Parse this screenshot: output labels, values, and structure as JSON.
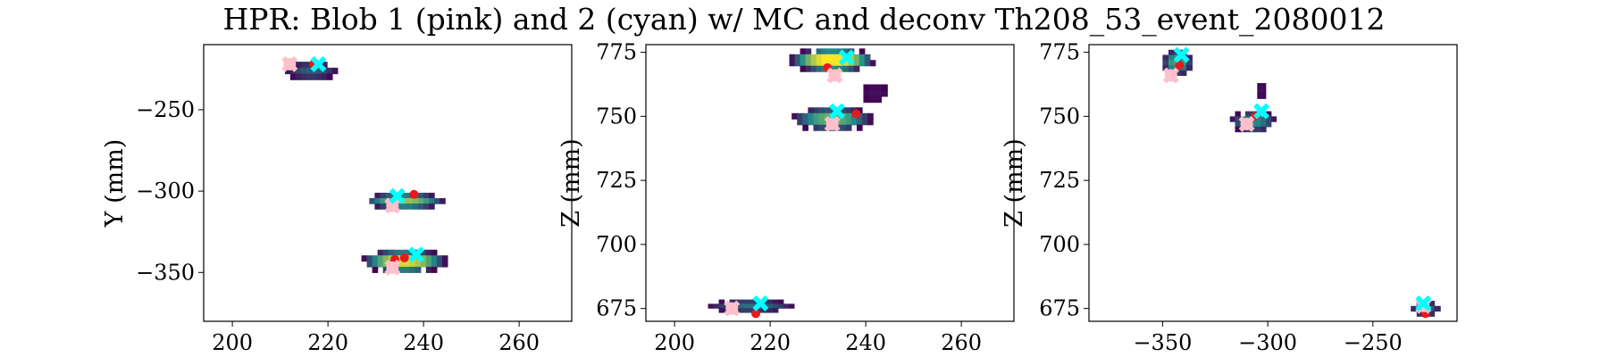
{
  "chart_data": {
    "type": "heatmap",
    "title": "HPR: Blob 1 (pink) and 2 (cyan) w/ MC and deconv Th208_53_event_2080012",
    "colors": {
      "blob1": "#ffc0cb",
      "blob2": "#00ffff",
      "mc_points": "#e41a1c",
      "heatmap_low": "#440154",
      "heatmap_mid": "#21918c",
      "heatmap_high": "#fde725",
      "frame": "#000000"
    },
    "panels": [
      {
        "name": "XY projection",
        "xlabel": "",
        "ylabel": "Y (mm)",
        "xlim": [
          194,
          271
        ],
        "ylim": [
          -380,
          -210
        ],
        "xticks": [
          "200",
          "220",
          "240",
          "260"
        ],
        "yticks": [
          "-250",
          "-300",
          "-350"
        ],
        "heatmap_clusters": [
          {
            "x": 216.5,
            "y": -226,
            "w": 11,
            "h": 11,
            "intensity": 0.25
          },
          {
            "x": 236,
            "y": -306,
            "w": 17,
            "h": 10,
            "intensity": 0.6
          },
          {
            "x": 236,
            "y": -343,
            "w": 18,
            "h": 14,
            "intensity": 0.75
          }
        ],
        "blob1_markers": [
          {
            "x": 212,
            "y": -222
          },
          {
            "x": 233.5,
            "y": -309
          },
          {
            "x": 233.5,
            "y": -347
          }
        ],
        "blob2_markers": [
          {
            "x": 218,
            "y": -222
          },
          {
            "x": 234.5,
            "y": -303
          },
          {
            "x": 238.5,
            "y": -339
          }
        ],
        "mc_points": [
          {
            "x": 217,
            "y": -222
          },
          {
            "x": 238,
            "y": -302
          },
          {
            "x": 234,
            "y": -342
          },
          {
            "x": 236,
            "y": -341
          }
        ]
      },
      {
        "name": "XZ projection",
        "xlabel": "",
        "ylabel": "Z (mm)",
        "xlim": [
          194,
          271
        ],
        "ylim": [
          670,
          778
        ],
        "xticks": [
          "200",
          "220",
          "240",
          "260"
        ],
        "yticks": [
          "675",
          "700",
          "725",
          "750",
          "775"
        ],
        "heatmap_clusters": [
          {
            "x": 233,
            "y": 772,
            "w": 18,
            "h": 9,
            "intensity": 0.85
          },
          {
            "x": 242,
            "y": 759,
            "w": 5,
            "h": 7,
            "intensity": 0.05
          },
          {
            "x": 233,
            "y": 749,
            "w": 17,
            "h": 9,
            "intensity": 0.55
          },
          {
            "x": 216,
            "y": 676,
            "w": 18,
            "h": 5,
            "intensity": 0.3
          }
        ],
        "blob1_markers": [
          {
            "x": 233.5,
            "y": 766
          },
          {
            "x": 233,
            "y": 747
          },
          {
            "x": 212,
            "y": 675
          }
        ],
        "blob2_markers": [
          {
            "x": 236,
            "y": 773
          },
          {
            "x": 234,
            "y": 752
          },
          {
            "x": 218,
            "y": 677
          }
        ],
        "mc_points": [
          {
            "x": 232,
            "y": 769
          },
          {
            "x": 238,
            "y": 751
          },
          {
            "x": 217,
            "y": 673
          }
        ]
      },
      {
        "name": "YZ projection",
        "xlabel": "",
        "ylabel": "Z (mm)",
        "xlim": [
          -385,
          -210
        ],
        "ylim": [
          670,
          778
        ],
        "xticks": [
          "-350",
          "-300",
          "-250"
        ],
        "yticks": [
          "675",
          "700",
          "725",
          "750",
          "775"
        ],
        "heatmap_clusters": [
          {
            "x": -343,
            "y": 771,
            "w": 14,
            "h": 10,
            "intensity": 0.5
          },
          {
            "x": -303,
            "y": 760,
            "w": 4,
            "h": 6,
            "intensity": 0.05
          },
          {
            "x": -307,
            "y": 748,
            "w": 22,
            "h": 8,
            "intensity": 0.4
          },
          {
            "x": -225,
            "y": 675,
            "w": 14,
            "h": 6,
            "intensity": 0.3
          }
        ],
        "blob1_markers": [
          {
            "x": -346,
            "y": 766
          },
          {
            "x": -310,
            "y": 747
          },
          {
            "x": -226,
            "y": 676
          }
        ],
        "blob2_markers": [
          {
            "x": -341,
            "y": 774
          },
          {
            "x": -303,
            "y": 752
          },
          {
            "x": -226,
            "y": 677
          }
        ],
        "mc_points": [
          {
            "x": -342,
            "y": 770
          },
          {
            "x": -306,
            "y": 750
          },
          {
            "x": -225,
            "y": 673
          }
        ]
      }
    ]
  }
}
